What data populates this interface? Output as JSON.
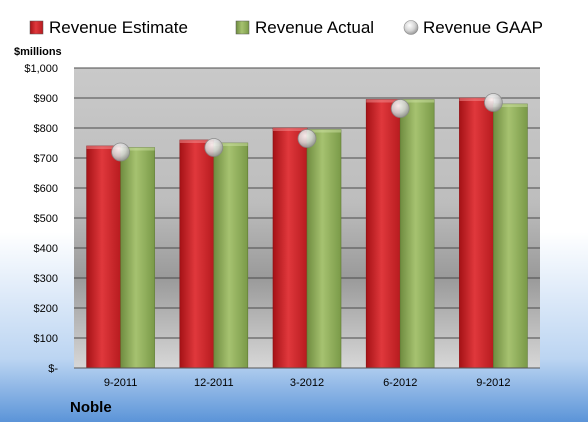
{
  "chart_data": {
    "type": "bar",
    "ylabel": "$millions",
    "company": "Noble",
    "categories": [
      "9-2011",
      "12-2011",
      "3-2012",
      "6-2012",
      "9-2012"
    ],
    "y_ticks": [
      "$-",
      "$100",
      "$200",
      "$300",
      "$400",
      "$500",
      "$600",
      "$700",
      "$800",
      "$900",
      "$1,000"
    ],
    "ylim": [
      0,
      1000
    ],
    "grid": true,
    "legend_position": "top",
    "series": [
      {
        "name": "Revenue Estimate",
        "type": "bar",
        "color": "#d8262b",
        "values": [
          740,
          760,
          800,
          895,
          900
        ]
      },
      {
        "name": "Revenue Actual",
        "type": "bar",
        "color": "#8fae5a",
        "values": [
          735,
          750,
          795,
          895,
          880
        ]
      },
      {
        "name": "Revenue GAAP",
        "type": "marker",
        "color": "#c8c8c8",
        "values": [
          720,
          735,
          765,
          865,
          885
        ]
      }
    ]
  }
}
